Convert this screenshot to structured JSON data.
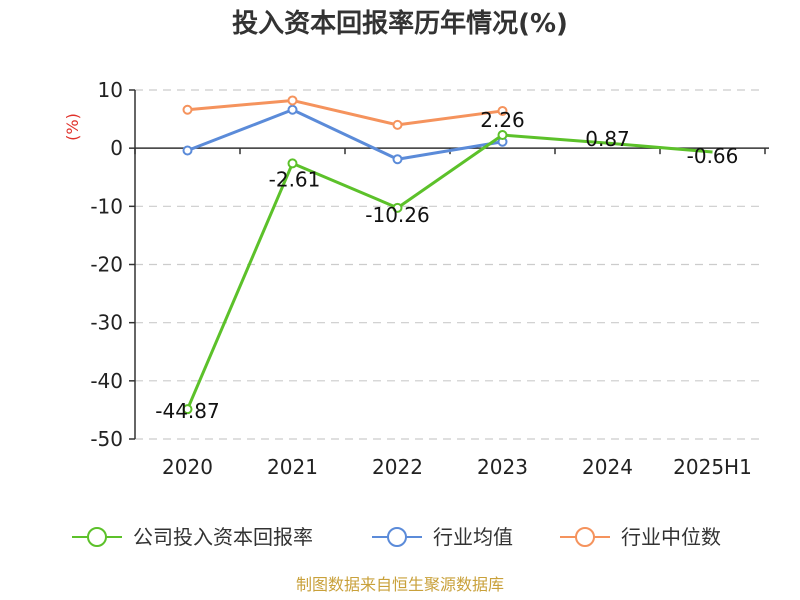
{
  "chart_data": {
    "type": "line",
    "title": "投入资本回报率历年情况(%)",
    "ylabel": "(%)",
    "categories": [
      "2020",
      "2021",
      "2022",
      "2023",
      "2024",
      "2025H1"
    ],
    "ylim": [
      -50,
      10
    ],
    "yticks": [
      10,
      0,
      -10,
      -20,
      -30,
      -40,
      -50
    ],
    "grid": true,
    "legend_position": "bottom",
    "series": [
      {
        "name": "公司投入资本回报率",
        "color": "#5cc12a",
        "values": [
          -44.87,
          -2.61,
          -10.26,
          2.26,
          0.87,
          -0.66
        ],
        "labels": [
          "-44.87",
          "-2.61",
          "-10.26",
          "2.26",
          "0.87",
          "-0.66"
        ]
      },
      {
        "name": "行业均值",
        "color": "#5b8bd9",
        "values": [
          -0.4,
          6.6,
          -1.9,
          1.1,
          null,
          null
        ]
      },
      {
        "name": "行业中位数",
        "color": "#f5935d",
        "values": [
          6.6,
          8.2,
          4.0,
          6.4,
          null,
          null
        ]
      }
    ]
  },
  "source": {
    "text": "制图数据来自恒生聚源数据库",
    "color": "#c9a13b"
  },
  "unit_color": "#e0312a"
}
